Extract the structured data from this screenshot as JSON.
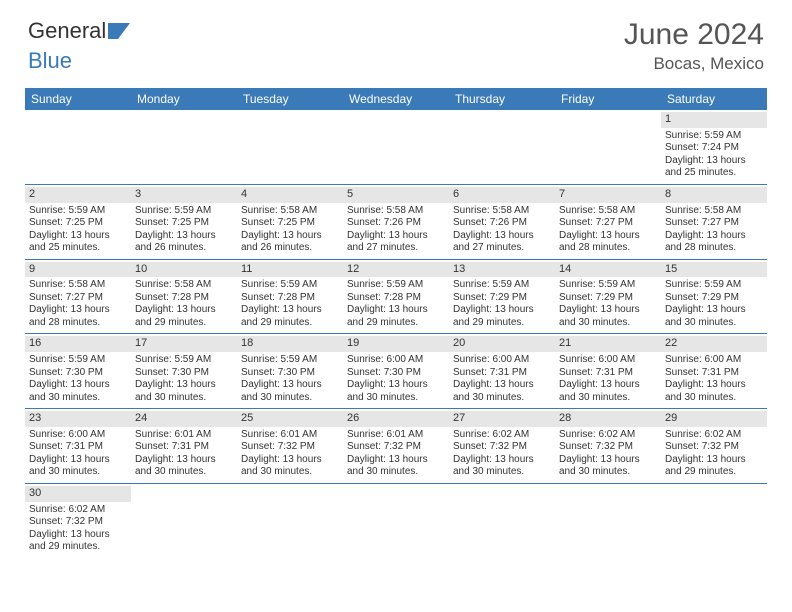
{
  "brand": {
    "part1": "General",
    "part2": "Blue"
  },
  "title": "June 2024",
  "location": "Bocas, Mexico",
  "colors": {
    "header_bg": "#3a7ab8",
    "header_text": "#ffffff",
    "daynum_bg": "#e6e6e6",
    "divider": "#3a7ab8",
    "page_bg": "#ffffff",
    "text": "#333333",
    "title_text": "#555555"
  },
  "typography": {
    "title_fontsize": 30,
    "location_fontsize": 17,
    "dayhead_fontsize": 12,
    "cell_fontsize": 10
  },
  "day_headers": [
    "Sunday",
    "Monday",
    "Tuesday",
    "Wednesday",
    "Thursday",
    "Friday",
    "Saturday"
  ],
  "weeks": [
    [
      null,
      null,
      null,
      null,
      null,
      null,
      {
        "n": "1",
        "sunrise": "Sunrise: 5:59 AM",
        "sunset": "Sunset: 7:24 PM",
        "daylight": "Daylight: 13 hours and 25 minutes."
      }
    ],
    [
      {
        "n": "2",
        "sunrise": "Sunrise: 5:59 AM",
        "sunset": "Sunset: 7:25 PM",
        "daylight": "Daylight: 13 hours and 25 minutes."
      },
      {
        "n": "3",
        "sunrise": "Sunrise: 5:59 AM",
        "sunset": "Sunset: 7:25 PM",
        "daylight": "Daylight: 13 hours and 26 minutes."
      },
      {
        "n": "4",
        "sunrise": "Sunrise: 5:58 AM",
        "sunset": "Sunset: 7:25 PM",
        "daylight": "Daylight: 13 hours and 26 minutes."
      },
      {
        "n": "5",
        "sunrise": "Sunrise: 5:58 AM",
        "sunset": "Sunset: 7:26 PM",
        "daylight": "Daylight: 13 hours and 27 minutes."
      },
      {
        "n": "6",
        "sunrise": "Sunrise: 5:58 AM",
        "sunset": "Sunset: 7:26 PM",
        "daylight": "Daylight: 13 hours and 27 minutes."
      },
      {
        "n": "7",
        "sunrise": "Sunrise: 5:58 AM",
        "sunset": "Sunset: 7:27 PM",
        "daylight": "Daylight: 13 hours and 28 minutes."
      },
      {
        "n": "8",
        "sunrise": "Sunrise: 5:58 AM",
        "sunset": "Sunset: 7:27 PM",
        "daylight": "Daylight: 13 hours and 28 minutes."
      }
    ],
    [
      {
        "n": "9",
        "sunrise": "Sunrise: 5:58 AM",
        "sunset": "Sunset: 7:27 PM",
        "daylight": "Daylight: 13 hours and 28 minutes."
      },
      {
        "n": "10",
        "sunrise": "Sunrise: 5:58 AM",
        "sunset": "Sunset: 7:28 PM",
        "daylight": "Daylight: 13 hours and 29 minutes."
      },
      {
        "n": "11",
        "sunrise": "Sunrise: 5:59 AM",
        "sunset": "Sunset: 7:28 PM",
        "daylight": "Daylight: 13 hours and 29 minutes."
      },
      {
        "n": "12",
        "sunrise": "Sunrise: 5:59 AM",
        "sunset": "Sunset: 7:28 PM",
        "daylight": "Daylight: 13 hours and 29 minutes."
      },
      {
        "n": "13",
        "sunrise": "Sunrise: 5:59 AM",
        "sunset": "Sunset: 7:29 PM",
        "daylight": "Daylight: 13 hours and 29 minutes."
      },
      {
        "n": "14",
        "sunrise": "Sunrise: 5:59 AM",
        "sunset": "Sunset: 7:29 PM",
        "daylight": "Daylight: 13 hours and 30 minutes."
      },
      {
        "n": "15",
        "sunrise": "Sunrise: 5:59 AM",
        "sunset": "Sunset: 7:29 PM",
        "daylight": "Daylight: 13 hours and 30 minutes."
      }
    ],
    [
      {
        "n": "16",
        "sunrise": "Sunrise: 5:59 AM",
        "sunset": "Sunset: 7:30 PM",
        "daylight": "Daylight: 13 hours and 30 minutes."
      },
      {
        "n": "17",
        "sunrise": "Sunrise: 5:59 AM",
        "sunset": "Sunset: 7:30 PM",
        "daylight": "Daylight: 13 hours and 30 minutes."
      },
      {
        "n": "18",
        "sunrise": "Sunrise: 5:59 AM",
        "sunset": "Sunset: 7:30 PM",
        "daylight": "Daylight: 13 hours and 30 minutes."
      },
      {
        "n": "19",
        "sunrise": "Sunrise: 6:00 AM",
        "sunset": "Sunset: 7:30 PM",
        "daylight": "Daylight: 13 hours and 30 minutes."
      },
      {
        "n": "20",
        "sunrise": "Sunrise: 6:00 AM",
        "sunset": "Sunset: 7:31 PM",
        "daylight": "Daylight: 13 hours and 30 minutes."
      },
      {
        "n": "21",
        "sunrise": "Sunrise: 6:00 AM",
        "sunset": "Sunset: 7:31 PM",
        "daylight": "Daylight: 13 hours and 30 minutes."
      },
      {
        "n": "22",
        "sunrise": "Sunrise: 6:00 AM",
        "sunset": "Sunset: 7:31 PM",
        "daylight": "Daylight: 13 hours and 30 minutes."
      }
    ],
    [
      {
        "n": "23",
        "sunrise": "Sunrise: 6:00 AM",
        "sunset": "Sunset: 7:31 PM",
        "daylight": "Daylight: 13 hours and 30 minutes."
      },
      {
        "n": "24",
        "sunrise": "Sunrise: 6:01 AM",
        "sunset": "Sunset: 7:31 PM",
        "daylight": "Daylight: 13 hours and 30 minutes."
      },
      {
        "n": "25",
        "sunrise": "Sunrise: 6:01 AM",
        "sunset": "Sunset: 7:32 PM",
        "daylight": "Daylight: 13 hours and 30 minutes."
      },
      {
        "n": "26",
        "sunrise": "Sunrise: 6:01 AM",
        "sunset": "Sunset: 7:32 PM",
        "daylight": "Daylight: 13 hours and 30 minutes."
      },
      {
        "n": "27",
        "sunrise": "Sunrise: 6:02 AM",
        "sunset": "Sunset: 7:32 PM",
        "daylight": "Daylight: 13 hours and 30 minutes."
      },
      {
        "n": "28",
        "sunrise": "Sunrise: 6:02 AM",
        "sunset": "Sunset: 7:32 PM",
        "daylight": "Daylight: 13 hours and 30 minutes."
      },
      {
        "n": "29",
        "sunrise": "Sunrise: 6:02 AM",
        "sunset": "Sunset: 7:32 PM",
        "daylight": "Daylight: 13 hours and 29 minutes."
      }
    ],
    [
      {
        "n": "30",
        "sunrise": "Sunrise: 6:02 AM",
        "sunset": "Sunset: 7:32 PM",
        "daylight": "Daylight: 13 hours and 29 minutes."
      },
      null,
      null,
      null,
      null,
      null,
      null
    ]
  ]
}
